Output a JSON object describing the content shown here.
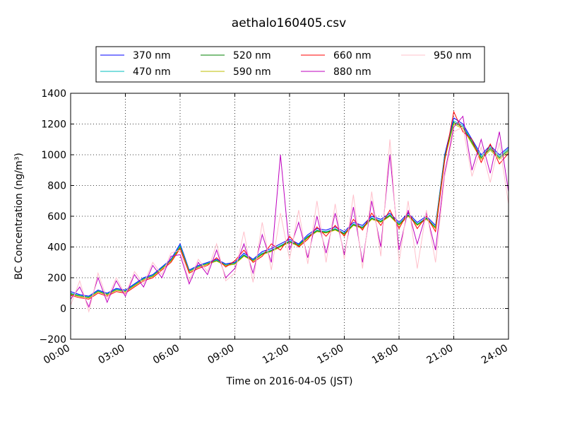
{
  "chart_data": {
    "type": "line",
    "title": "aethalo160405.csv",
    "xlabel": "Time on 2016-04-05 (JST)",
    "ylabel": "BC Concentration (ng/m³)",
    "xlim": [
      0,
      24
    ],
    "ylim": [
      -200,
      1400
    ],
    "grid": true,
    "legend": "top",
    "xticks": [
      0,
      3,
      6,
      9,
      12,
      15,
      18,
      21,
      24
    ],
    "xtick_labels": [
      "00:00",
      "03:00",
      "06:00",
      "09:00",
      "12:00",
      "15:00",
      "18:00",
      "21:00",
      "24:00"
    ],
    "yticks": [
      -200,
      0,
      200,
      400,
      600,
      800,
      1000,
      1200,
      1400
    ],
    "ytick_labels": [
      "−200",
      "0",
      "200",
      "400",
      "600",
      "800",
      "1000",
      "1200",
      "1400"
    ],
    "x_hours": [
      0,
      0.5,
      1,
      1.5,
      2,
      2.5,
      3,
      3.5,
      4,
      4.5,
      5,
      5.5,
      6,
      6.5,
      7,
      7.5,
      8,
      8.5,
      9,
      9.5,
      10,
      10.5,
      11,
      11.5,
      12,
      12.5,
      13,
      13.5,
      14,
      14.5,
      15,
      15.5,
      16,
      16.5,
      17,
      17.5,
      18,
      18.5,
      19,
      19.5,
      20,
      20.5,
      21,
      21.5,
      22,
      22.5,
      23,
      23.5,
      24
    ],
    "series": [
      {
        "name": "370 nm",
        "color": "#0000ff",
        "values": [
          110,
          90,
          80,
          120,
          100,
          130,
          120,
          160,
          200,
          220,
          270,
          320,
          420,
          250,
          280,
          300,
          320,
          290,
          300,
          360,
          320,
          370,
          390,
          420,
          450,
          420,
          480,
          520,
          510,
          530,
          500,
          560,
          540,
          600,
          580,
          620,
          560,
          620,
          560,
          600,
          540,
          1000,
          1240,
          1200,
          1100,
          1000,
          1060,
          1000,
          1050
        ]
      },
      {
        "name": "470 nm",
        "color": "#00bfbf",
        "values": [
          100,
          85,
          75,
          115,
          95,
          125,
          115,
          155,
          195,
          215,
          265,
          315,
          410,
          245,
          275,
          295,
          315,
          285,
          295,
          350,
          315,
          360,
          380,
          410,
          440,
          415,
          470,
          510,
          500,
          520,
          490,
          550,
          530,
          590,
          570,
          610,
          550,
          610,
          550,
          590,
          530,
          990,
          1220,
          1190,
          1090,
          990,
          1050,
          990,
          1040
        ]
      },
      {
        "name": "520 nm",
        "color": "#008000",
        "values": [
          95,
          80,
          70,
          110,
          90,
          120,
          110,
          150,
          190,
          210,
          260,
          310,
          400,
          240,
          270,
          290,
          310,
          280,
          290,
          345,
          310,
          355,
          375,
          405,
          435,
          410,
          465,
          505,
          495,
          515,
          485,
          545,
          525,
          585,
          565,
          605,
          545,
          605,
          545,
          585,
          525,
          980,
          1210,
          1180,
          1080,
          980,
          1040,
          980,
          1030
        ]
      },
      {
        "name": "590 nm",
        "color": "#bfbf00",
        "values": [
          90,
          78,
          68,
          108,
          88,
          118,
          108,
          148,
          188,
          208,
          258,
          308,
          395,
          238,
          268,
          288,
          308,
          278,
          288,
          340,
          308,
          350,
          370,
          400,
          430,
          405,
          460,
          500,
          490,
          510,
          480,
          540,
          520,
          580,
          560,
          600,
          540,
          600,
          540,
          580,
          520,
          970,
          1200,
          1170,
          1070,
          970,
          1030,
          970,
          1020
        ]
      },
      {
        "name": "660 nm",
        "color": "#ff0000",
        "values": [
          85,
          70,
          60,
          100,
          80,
          110,
          100,
          140,
          180,
          200,
          250,
          300,
          390,
          230,
          260,
          280,
          330,
          270,
          310,
          380,
          300,
          340,
          420,
          380,
          470,
          400,
          450,
          530,
          470,
          540,
          470,
          580,
          510,
          620,
          540,
          640,
          520,
          630,
          520,
          600,
          500,
          960,
          1280,
          1150,
          1100,
          950,
          1070,
          940,
          1010
        ]
      },
      {
        "name": "880 nm",
        "color": "#bf00bf",
        "values": [
          60,
          140,
          10,
          200,
          40,
          180,
          80,
          220,
          140,
          280,
          200,
          340,
          350,
          160,
          300,
          220,
          380,
          200,
          260,
          420,
          230,
          480,
          300,
          1000,
          380,
          560,
          330,
          600,
          360,
          620,
          350,
          660,
          300,
          700,
          400,
          1000,
          380,
          640,
          420,
          620,
          380,
          880,
          1180,
          1250,
          900,
          1100,
          880,
          1150,
          760
        ]
      },
      {
        "name": "950 nm",
        "color": "#ffc0cb",
        "values": [
          20,
          180,
          -20,
          230,
          60,
          200,
          90,
          240,
          160,
          300,
          220,
          360,
          380,
          180,
          320,
          240,
          420,
          180,
          230,
          500,
          170,
          560,
          250,
          620,
          320,
          640,
          290,
          700,
          300,
          680,
          320,
          740,
          260,
          760,
          340,
          1100,
          300,
          700,
          260,
          640,
          300,
          860,
          1150,
          1180,
          860,
          1050,
          820,
          1080,
          680
        ]
      }
    ]
  }
}
